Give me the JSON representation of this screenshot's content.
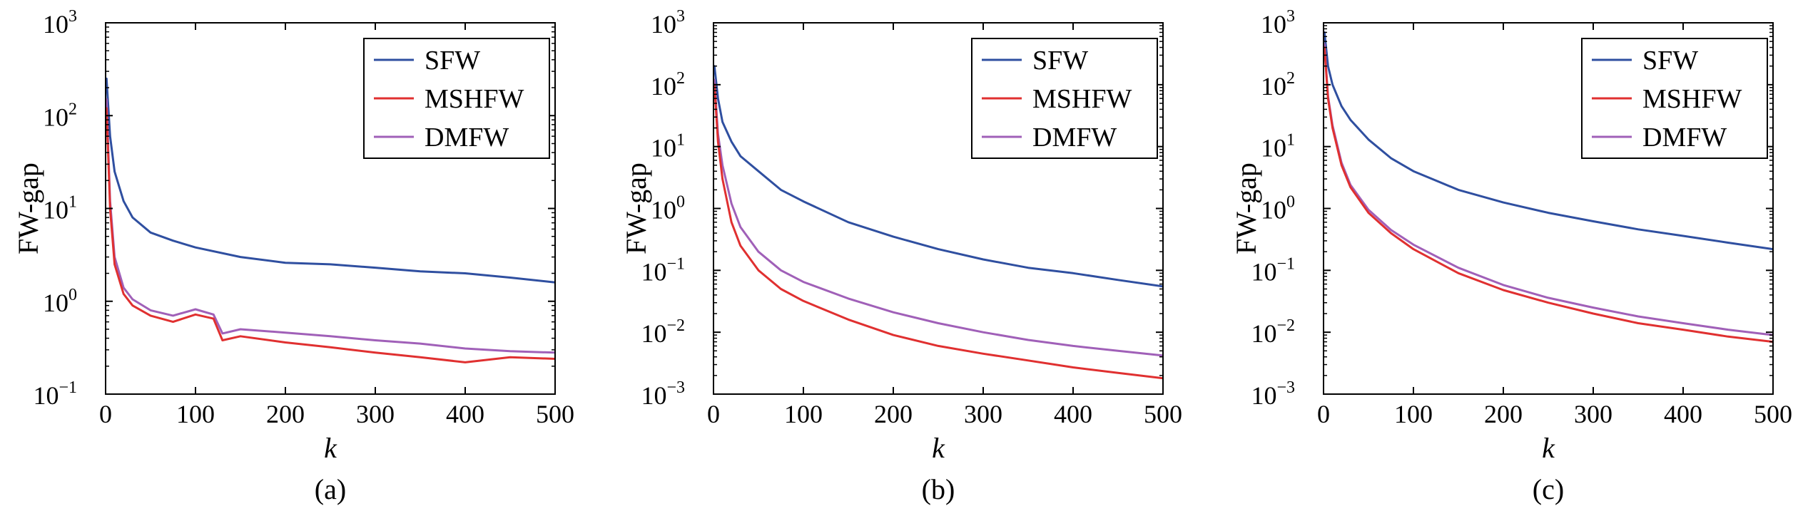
{
  "colors": {
    "SFW": "#2f4fa0",
    "MSHFW": "#e03030",
    "DMFW": "#a060b8"
  },
  "chart_data": [
    {
      "type": "line",
      "caption": "(a)",
      "xlabel": "k",
      "ylabel": "FW-gap",
      "yscale": "log",
      "xlim": [
        0,
        500
      ],
      "ylim": [
        0.1,
        1000
      ],
      "xticks": [
        "0",
        "100",
        "200",
        "300",
        "400",
        "500"
      ],
      "yticks": [
        {
          "base": "10",
          "exp": "3"
        },
        {
          "base": "10",
          "exp": "2"
        },
        {
          "base": "10",
          "exp": "1"
        },
        {
          "base": "10",
          "exp": "0"
        },
        {
          "base": "10",
          "exp": "−1"
        }
      ],
      "legend_position": "top-right",
      "legend": [
        "SFW",
        "MSHFW",
        "DMFW"
      ],
      "series": [
        {
          "name": "SFW",
          "x": [
            1,
            5,
            10,
            20,
            30,
            50,
            75,
            100,
            150,
            200,
            250,
            300,
            350,
            400,
            450,
            500
          ],
          "y": [
            250,
            60,
            25,
            12,
            8,
            5.5,
            4.5,
            3.8,
            3,
            2.6,
            2.5,
            2.3,
            2.1,
            2,
            1.8,
            1.6
          ]
        },
        {
          "name": "MSHFW",
          "x": [
            1,
            5,
            10,
            20,
            30,
            50,
            75,
            100,
            120,
            130,
            150,
            200,
            250,
            300,
            350,
            400,
            450,
            500
          ],
          "y": [
            120,
            10,
            2.5,
            1.2,
            0.9,
            0.7,
            0.6,
            0.72,
            0.65,
            0.38,
            0.42,
            0.36,
            0.32,
            0.28,
            0.25,
            0.22,
            0.25,
            0.24
          ]
        },
        {
          "name": "DMFW",
          "x": [
            1,
            5,
            10,
            20,
            30,
            50,
            75,
            100,
            120,
            130,
            150,
            200,
            250,
            300,
            350,
            400,
            450,
            500
          ],
          "y": [
            150,
            12,
            3,
            1.4,
            1.05,
            0.8,
            0.7,
            0.82,
            0.72,
            0.45,
            0.5,
            0.46,
            0.42,
            0.38,
            0.35,
            0.31,
            0.29,
            0.28
          ]
        }
      ]
    },
    {
      "type": "line",
      "caption": "(b)",
      "xlabel": "k",
      "ylabel": "FW-gap",
      "yscale": "log",
      "xlim": [
        0,
        500
      ],
      "ylim": [
        0.001,
        1000
      ],
      "xticks": [
        "0",
        "100",
        "200",
        "300",
        "400",
        "500"
      ],
      "yticks": [
        {
          "base": "10",
          "exp": "3"
        },
        {
          "base": "10",
          "exp": "2"
        },
        {
          "base": "10",
          "exp": "1"
        },
        {
          "base": "10",
          "exp": "0"
        },
        {
          "base": "10",
          "exp": "−1"
        },
        {
          "base": "10",
          "exp": "−2"
        },
        {
          "base": "10",
          "exp": "−3"
        }
      ],
      "legend_position": "top-right",
      "legend": [
        "SFW",
        "MSHFW",
        "DMFW"
      ],
      "series": [
        {
          "name": "SFW",
          "x": [
            1,
            5,
            10,
            20,
            30,
            50,
            75,
            100,
            150,
            200,
            250,
            300,
            350,
            400,
            450,
            500
          ],
          "y": [
            200,
            60,
            25,
            12,
            7,
            4,
            2,
            1.3,
            0.6,
            0.35,
            0.22,
            0.15,
            0.11,
            0.09,
            0.07,
            0.055
          ]
        },
        {
          "name": "MSHFW",
          "x": [
            1,
            5,
            10,
            20,
            30,
            50,
            75,
            100,
            150,
            200,
            250,
            300,
            350,
            400,
            450,
            500
          ],
          "y": [
            100,
            12,
            3,
            0.6,
            0.25,
            0.1,
            0.05,
            0.032,
            0.016,
            0.009,
            0.006,
            0.0045,
            0.0035,
            0.0027,
            0.0022,
            0.0018
          ]
        },
        {
          "name": "DMFW",
          "x": [
            1,
            5,
            10,
            20,
            30,
            50,
            75,
            100,
            150,
            200,
            250,
            300,
            350,
            400,
            450,
            500
          ],
          "y": [
            120,
            16,
            5,
            1.2,
            0.5,
            0.2,
            0.1,
            0.065,
            0.035,
            0.021,
            0.014,
            0.01,
            0.0075,
            0.006,
            0.005,
            0.0042
          ]
        }
      ]
    },
    {
      "type": "line",
      "caption": "(c)",
      "xlabel": "k",
      "ylabel": "FW-gap",
      "yscale": "log",
      "xlim": [
        0,
        500
      ],
      "ylim": [
        0.001,
        1000
      ],
      "xticks": [
        "0",
        "100",
        "200",
        "300",
        "400",
        "500"
      ],
      "yticks": [
        {
          "base": "10",
          "exp": "3"
        },
        {
          "base": "10",
          "exp": "2"
        },
        {
          "base": "10",
          "exp": "1"
        },
        {
          "base": "10",
          "exp": "0"
        },
        {
          "base": "10",
          "exp": "−1"
        },
        {
          "base": "10",
          "exp": "−2"
        },
        {
          "base": "10",
          "exp": "−3"
        }
      ],
      "legend_position": "top-right",
      "legend": [
        "SFW",
        "MSHFW",
        "DMFW"
      ],
      "series": [
        {
          "name": "SFW",
          "x": [
            1,
            5,
            10,
            20,
            30,
            50,
            75,
            100,
            150,
            200,
            250,
            300,
            350,
            400,
            450,
            500
          ],
          "y": [
            700,
            200,
            100,
            45,
            27,
            13,
            6.5,
            4,
            2,
            1.25,
            0.85,
            0.62,
            0.46,
            0.36,
            0.28,
            0.22
          ]
        },
        {
          "name": "MSHFW",
          "x": [
            1,
            5,
            10,
            20,
            30,
            50,
            75,
            100,
            150,
            200,
            250,
            300,
            350,
            400,
            450,
            500
          ],
          "y": [
            400,
            60,
            20,
            5,
            2.2,
            0.85,
            0.4,
            0.22,
            0.09,
            0.048,
            0.03,
            0.02,
            0.014,
            0.011,
            0.0085,
            0.007
          ]
        },
        {
          "name": "DMFW",
          "x": [
            1,
            5,
            10,
            20,
            30,
            50,
            75,
            100,
            150,
            200,
            250,
            300,
            350,
            400,
            450,
            500
          ],
          "y": [
            450,
            65,
            22,
            5.5,
            2.4,
            0.95,
            0.45,
            0.26,
            0.11,
            0.058,
            0.036,
            0.025,
            0.018,
            0.014,
            0.011,
            0.009
          ]
        }
      ]
    }
  ]
}
